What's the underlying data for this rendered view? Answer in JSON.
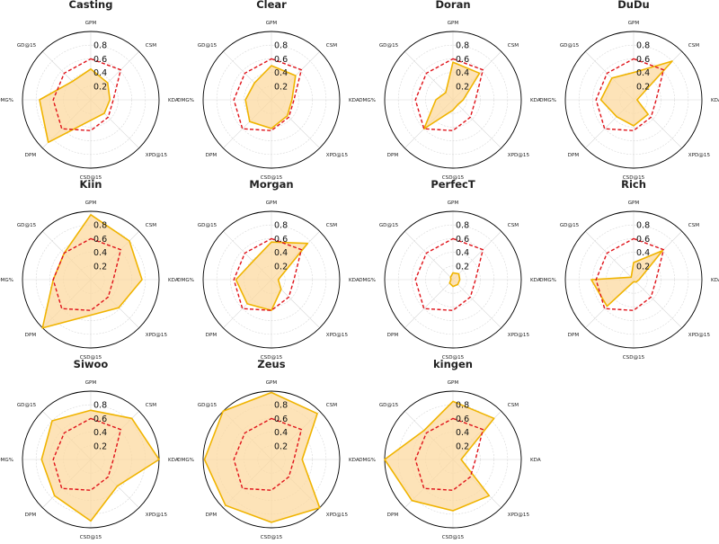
{
  "chart_data": {
    "type": "radar",
    "axes": [
      "GPM",
      "CSM",
      "KDA",
      "XPD@15",
      "CSD@15",
      "DPM",
      "DMG%",
      "GD@15"
    ],
    "rticks": [
      "0.2",
      "0.4",
      "0.6",
      "0.8"
    ],
    "rlim": [
      0,
      1
    ],
    "reference": [
      0.6,
      0.62,
      0.33,
      0.36,
      0.45,
      0.6,
      0.55,
      0.55
    ],
    "colors": {
      "player_line": "#f0b400",
      "player_fill": "#fcd9a0",
      "reference_line": "#e0131a"
    },
    "charts": [
      {
        "title": "Casting",
        "values": [
          0.45,
          0.35,
          0.28,
          0.28,
          0.3,
          0.88,
          0.75,
          0.38
        ]
      },
      {
        "title": "Clear",
        "values": [
          0.5,
          0.5,
          0.3,
          0.33,
          0.42,
          0.45,
          0.38,
          0.35
        ]
      },
      {
        "title": "Doran",
        "values": [
          0.55,
          0.55,
          0.15,
          0.1,
          0.15,
          0.6,
          0.25,
          0.15
        ]
      },
      {
        "title": "DuDu",
        "values": [
          0.4,
          0.8,
          0.05,
          0.3,
          0.38,
          0.35,
          0.48,
          0.45
        ]
      },
      {
        "title": "Kiin",
        "values": [
          0.95,
          0.8,
          0.75,
          0.58,
          0.52,
          1.0,
          0.55,
          0.55
        ]
      },
      {
        "title": "Morgan",
        "values": [
          0.55,
          0.75,
          0.1,
          0.2,
          0.45,
          0.5,
          0.52,
          0.38
        ]
      },
      {
        "title": "PerfecT",
        "values": [
          0.1,
          0.12,
          0.1,
          0.1,
          0.1,
          0.07,
          0.03,
          0.05
        ]
      },
      {
        "title": "Rich",
        "values": [
          0.25,
          0.6,
          0.08,
          0.05,
          0.03,
          0.55,
          0.62,
          0.05
        ]
      },
      {
        "title": "Siwoo",
        "values": [
          0.72,
          0.85,
          1.0,
          0.55,
          0.9,
          0.75,
          0.72,
          0.8
        ]
      },
      {
        "title": "Zeus",
        "values": [
          0.98,
          0.95,
          0.45,
          1.0,
          0.92,
          0.95,
          0.98,
          1.0
        ]
      },
      {
        "title": "kingen",
        "values": [
          0.85,
          0.85,
          0.12,
          0.75,
          0.75,
          0.85,
          1.0,
          0.6
        ]
      }
    ]
  }
}
